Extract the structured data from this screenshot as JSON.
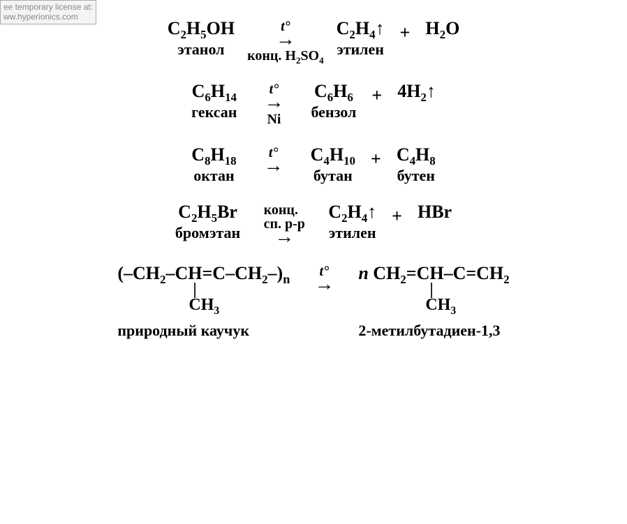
{
  "watermark": {
    "line1": "ee temporary license at:",
    "line2": "ww.hyperionics.com"
  },
  "reactions": [
    {
      "reagent": {
        "formula_html": "C<sub>2</sub>H<sub>5</sub>OH",
        "label": "этанол"
      },
      "arrow_above": "t°",
      "arrow_below_html": "конц. H<sub>2</sub>SO<sub>4</sub>",
      "products": [
        {
          "formula_html": "C<sub>2</sub>H<sub>4</sub>↑",
          "label": "этилен"
        },
        {
          "op": "+",
          "formula_html": "H<sub>2</sub>O",
          "label": ""
        }
      ]
    },
    {
      "reagent": {
        "formula_html": "C<sub>6</sub>H<sub>14</sub>",
        "label": "гексан"
      },
      "arrow_above": "t°",
      "arrow_below_html": "Ni",
      "products": [
        {
          "formula_html": "C<sub>6</sub>H<sub>6</sub>",
          "label": "бензол"
        },
        {
          "op": "+",
          "formula_html": "4H<sub>2</sub>↑",
          "label": ""
        }
      ]
    },
    {
      "reagent": {
        "formula_html": "C<sub>8</sub>H<sub>18</sub>",
        "label": "октан"
      },
      "arrow_above": "t°",
      "arrow_below_html": "",
      "products": [
        {
          "formula_html": "C<sub>4</sub>H<sub>10</sub>",
          "label": "бутан"
        },
        {
          "op": "+",
          "formula_html": "C<sub>4</sub>H<sub>8</sub>",
          "label": "бутен"
        }
      ]
    },
    {
      "reagent": {
        "formula_html": "C<sub>2</sub>H<sub>5</sub>Br",
        "label": "бромэтан"
      },
      "arrow_above_html": "конц.<br>сп. р-р",
      "arrow_below_html": "",
      "products": [
        {
          "formula_html": "C<sub>2</sub>H<sub>4</sub>↑",
          "label": "этилен"
        },
        {
          "op": "+",
          "formula_html": "HBr",
          "label": ""
        }
      ]
    }
  ],
  "polymer": {
    "left_chain_html": "(–CH<sub>2</sub>–CH=C–CH<sub>2</sub>–)<sub class='subn'>n</sub>",
    "left_branch_spacer": "                  |",
    "left_branch_html": "                 CH<sub>3</sub>",
    "left_label": "природный каучук",
    "arrow_above": "t°",
    "right_prefix": "n ",
    "right_chain_html": "CH<sub>2</sub>=CH–C=CH<sub>2</sub>",
    "right_branch_spacer": "                 |",
    "right_branch_html": "                CH<sub>3</sub>",
    "right_label": "2-метилбутадиен-1,3"
  },
  "glyphs": {
    "arrow": "→"
  }
}
